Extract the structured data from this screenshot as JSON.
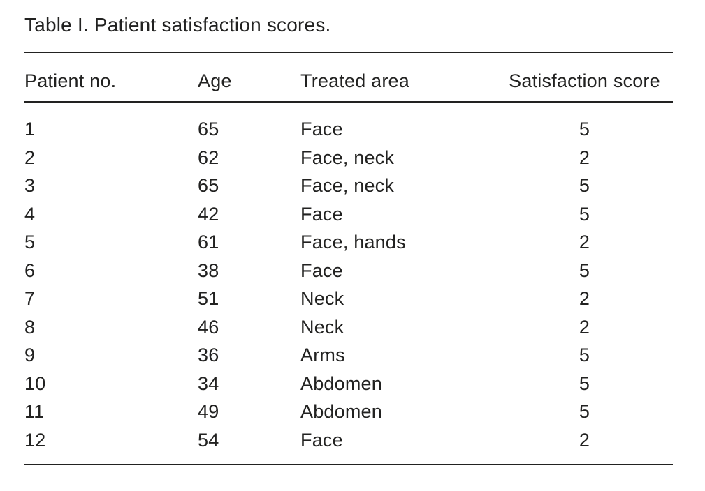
{
  "document": {
    "title": "Table I. Patient satisfaction scores."
  },
  "colors": {
    "text": "#222221",
    "rule": "#222221",
    "background": "#ffffff"
  },
  "table": {
    "headers": {
      "patient_no": "Patient no.",
      "age": "Age",
      "treated_area": "Treated area",
      "satisfaction_score": "Satisfaction score"
    },
    "rows": [
      {
        "no": "1",
        "age": "65",
        "area": "Face",
        "score": "5"
      },
      {
        "no": "2",
        "age": "62",
        "area": "Face, neck",
        "score": "2"
      },
      {
        "no": "3",
        "age": "65",
        "area": "Face, neck",
        "score": "5"
      },
      {
        "no": "4",
        "age": "42",
        "area": "Face",
        "score": "5"
      },
      {
        "no": "5",
        "age": "61",
        "area": "Face, hands",
        "score": "2"
      },
      {
        "no": "6",
        "age": "38",
        "area": "Face",
        "score": "5"
      },
      {
        "no": "7",
        "age": "51",
        "area": "Neck",
        "score": "2"
      },
      {
        "no": "8",
        "age": "46",
        "area": "Neck",
        "score": "2"
      },
      {
        "no": "9",
        "age": "36",
        "area": "Arms",
        "score": "5"
      },
      {
        "no": "10",
        "age": "34",
        "area": "Abdomen",
        "score": "5"
      },
      {
        "no": "11",
        "age": "49",
        "area": "Abdomen",
        "score": "5"
      },
      {
        "no": "12",
        "age": "54",
        "area": "Face",
        "score": "2"
      }
    ]
  }
}
